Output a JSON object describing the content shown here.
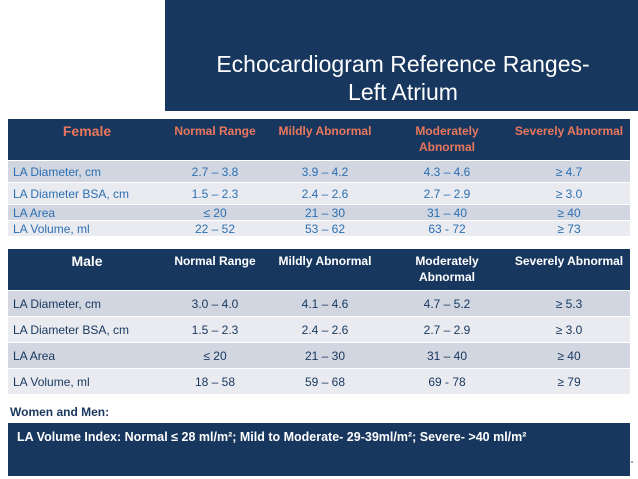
{
  "title": {
    "line1": "Echocardiogram Reference Ranges-",
    "line2": "Left Atrium"
  },
  "female": {
    "group": "Female",
    "headers": [
      "Normal Range",
      "Mildly Abnormal",
      "Moderately Abnormal",
      "Severely Abnormal"
    ],
    "rows": [
      [
        "LA Diameter, cm",
        "2.7 – 3.8",
        "3.9 – 4.2",
        "4.3 – 4.6",
        "≥ 4.7"
      ],
      [
        "LA Diameter BSA, cm",
        "1.5 – 2.3",
        "2.4 – 2.6",
        "2.7 – 2.9",
        "≥ 3.0"
      ],
      [
        "LA Area",
        "≤ 20",
        "21 – 30",
        "31 – 40",
        "≥ 40"
      ],
      [
        "LA Volume, ml",
        "22 – 52",
        "53 – 62",
        "63 - 72",
        "≥ 73"
      ]
    ]
  },
  "male": {
    "group": "Male",
    "headers": [
      "Normal Range",
      "Mildly Abnormal",
      "Moderately Abnormal",
      "Severely Abnormal"
    ],
    "rows": [
      [
        "LA Diameter, cm",
        "3.0 – 4.0",
        "4.1 – 4.6",
        "4.7 – 5.2",
        "≥ 5.3"
      ],
      [
        "LA Diameter BSA, cm",
        "1.5 – 2.3",
        "2.4 – 2.6",
        "2.7 – 2.9",
        "≥ 3.0"
      ],
      [
        "LA Area",
        "≤ 20",
        "21 – 30",
        "31 – 40",
        "≥ 40"
      ],
      [
        "LA Volume, ml",
        "18 – 58",
        "59 – 68",
        "69 - 78",
        "≥ 79"
      ]
    ]
  },
  "women_and_men_label": "Women and Men:",
  "la_volume_index": "LA Volume Index:   Normal  ≤ 28 ml/m²;  Mild to Moderate- 29-39ml/m²;  Severe- >40 ml/m²"
}
